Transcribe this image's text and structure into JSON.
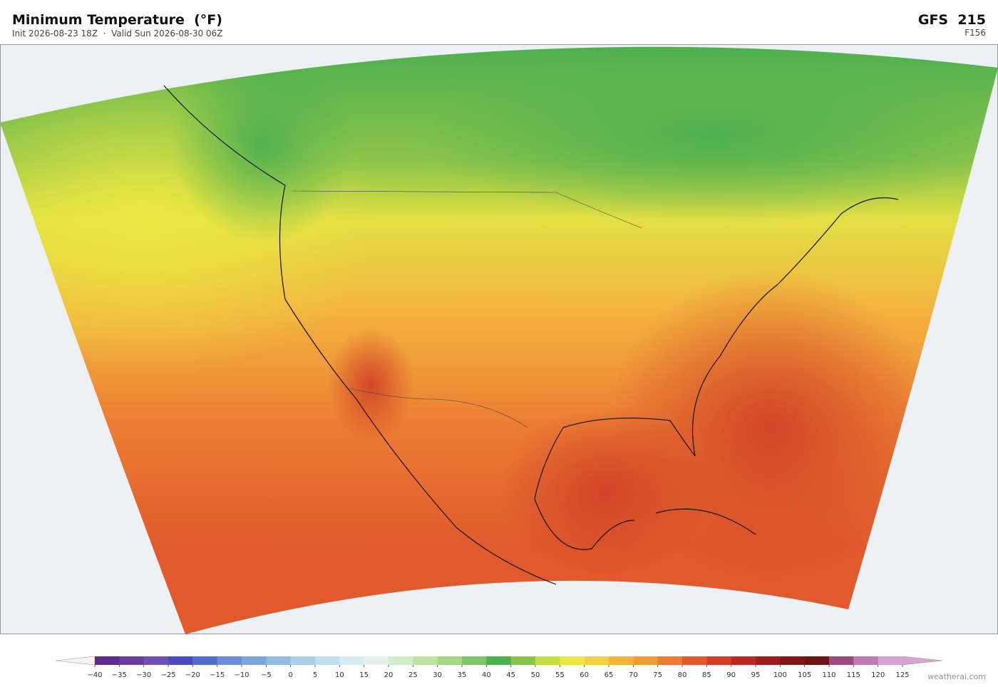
{
  "header": {
    "title": "Minimum Temperature  (°F)",
    "subtitle": "Init 2026-08-23 18Z  ·  Valid Sun 2026-08-30 06Z",
    "model": "GFS  215",
    "forecast_hour": "F156"
  },
  "colorbar": {
    "ticks": [
      {
        "value": -40,
        "label": "−40"
      },
      {
        "value": -35,
        "label": "−35"
      },
      {
        "value": -30,
        "label": "−30"
      },
      {
        "value": -25,
        "label": "−25"
      },
      {
        "value": -20,
        "label": "−20"
      },
      {
        "value": -15,
        "label": "−15"
      },
      {
        "value": -10,
        "label": "−10"
      },
      {
        "value": -5,
        "label": "−5"
      },
      0,
      5,
      10,
      15,
      20,
      25,
      30,
      35,
      40,
      45,
      50,
      55,
      60,
      65,
      70,
      75,
      80,
      85,
      90,
      95,
      100,
      105,
      110,
      115,
      120,
      125
    ],
    "colors": [
      "#5b2c8f",
      "#6a3c9c",
      "#7050b0",
      "#4b4bbf",
      "#5070d0",
      "#6a8fd8",
      "#7aa6dd",
      "#92bde3",
      "#a8d0ea",
      "#bfe0ef",
      "#d5ecf2",
      "#e2f2ea",
      "#d3edc8",
      "#bfe3a0",
      "#a4d683",
      "#7fc66a",
      "#4caf50",
      "#8cc44a",
      "#c8dc4a",
      "#ece843",
      "#f5cf45",
      "#f4b53f",
      "#f09a38",
      "#ec7c33",
      "#e05a2b",
      "#cf3f26",
      "#b72a22",
      "#9a1e1e",
      "#801818",
      "#6e1414",
      "#9e4a80",
      "#c07ab8",
      "#d8a2d2"
    ],
    "under_color": "#f4f4f4",
    "over_color": "#d8a2d2"
  },
  "footer": {
    "credit": "weatherai.com"
  }
}
